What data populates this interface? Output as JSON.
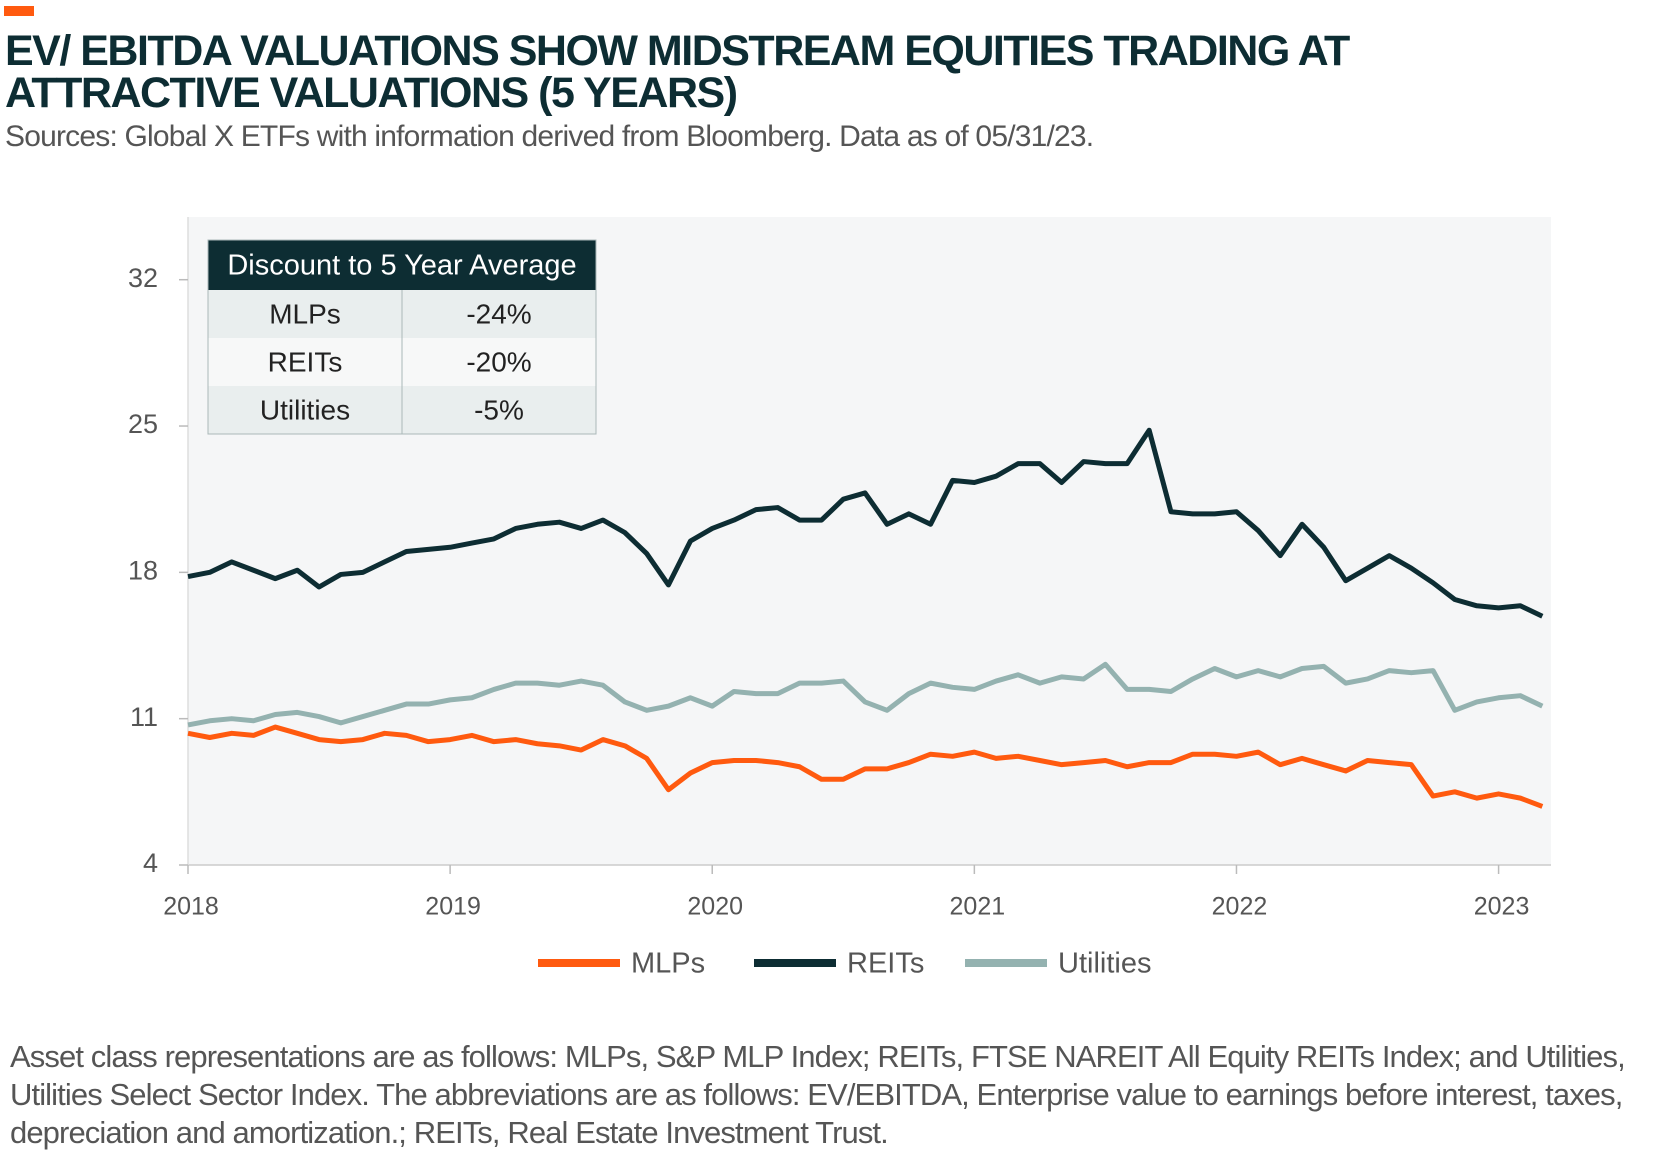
{
  "chart_data": {
    "type": "line",
    "title": "EV/ EBITDA VALUATIONS SHOW MIDSTREAM EQUITIES TRADING AT ATTRACTIVE VALUATIONS (5 YEARS)",
    "subtitle": "Sources: Global X ETFs with information derived from Bloomberg. Data as of 05/31/23.",
    "footnote": "Asset class representations are as follows: MLPs, S&P MLP Index; REITs, FTSE NAREIT All Equity REITs Index; and Utilities, Utilities Select Sector Index. The abbreviations are as follows: EV/EBITDA, Enterprise value to earnings before interest, taxes, depreciation and amortization.; REITs, Real Estate Investment Trust.",
    "x": [
      2018.0,
      2018.083,
      2018.167,
      2018.25,
      2018.333,
      2018.417,
      2018.5,
      2018.583,
      2018.667,
      2018.75,
      2018.833,
      2018.917,
      2019.0,
      2019.083,
      2019.167,
      2019.25,
      2019.333,
      2019.417,
      2019.5,
      2019.583,
      2019.667,
      2019.75,
      2019.833,
      2019.917,
      2020.0,
      2020.083,
      2020.167,
      2020.25,
      2020.333,
      2020.417,
      2020.5,
      2020.583,
      2020.667,
      2020.75,
      2020.833,
      2020.917,
      2021.0,
      2021.083,
      2021.167,
      2021.25,
      2021.333,
      2021.417,
      2021.5,
      2021.583,
      2021.667,
      2021.75,
      2021.833,
      2021.917,
      2022.0,
      2022.083,
      2022.167,
      2022.25,
      2022.333,
      2022.417,
      2022.5,
      2022.583,
      2022.667,
      2022.75,
      2022.833,
      2022.917,
      2023.0,
      2023.083,
      2023.167
    ],
    "series": [
      {
        "name": "MLPs",
        "color": "#ff5a0f",
        "values": [
          10.3,
          10.1,
          10.3,
          10.2,
          10.6,
          10.3,
          10.0,
          9.9,
          10.0,
          10.3,
          10.2,
          9.9,
          10.0,
          10.2,
          9.9,
          10.0,
          9.8,
          9.7,
          9.5,
          10.0,
          9.7,
          9.1,
          7.6,
          8.4,
          8.9,
          9.0,
          9.0,
          8.9,
          8.7,
          8.1,
          8.1,
          8.6,
          8.6,
          8.9,
          9.3,
          9.2,
          9.4,
          9.1,
          9.2,
          9.0,
          8.8,
          8.9,
          9.0,
          8.7,
          8.9,
          8.9,
          9.3,
          9.3,
          9.2,
          9.4,
          8.8,
          9.1,
          8.8,
          8.5,
          9.0,
          8.9,
          8.8,
          7.3,
          7.5,
          7.2,
          7.4,
          7.2,
          6.8
        ]
      },
      {
        "name": "REITs",
        "color": "#0d2d33",
        "values": [
          17.8,
          18.0,
          18.5,
          18.1,
          17.7,
          18.1,
          17.3,
          17.9,
          18.0,
          18.5,
          19.0,
          19.1,
          19.2,
          19.4,
          19.6,
          20.1,
          20.3,
          20.4,
          20.1,
          20.5,
          19.9,
          18.9,
          17.4,
          19.5,
          20.1,
          20.5,
          21.0,
          21.1,
          20.5,
          20.5,
          21.5,
          21.8,
          20.3,
          20.8,
          20.3,
          22.4,
          22.3,
          22.6,
          23.2,
          23.2,
          22.3,
          23.3,
          23.2,
          23.2,
          24.8,
          20.9,
          20.8,
          20.8,
          20.9,
          20.0,
          18.8,
          20.3,
          19.2,
          17.6,
          18.2,
          18.8,
          18.2,
          17.5,
          16.7,
          16.4,
          16.3,
          16.4,
          15.9
        ]
      },
      {
        "name": "Utilities",
        "color": "#94b2b0",
        "values": [
          10.7,
          10.9,
          11.0,
          10.9,
          11.2,
          11.3,
          11.1,
          10.8,
          11.1,
          11.4,
          11.7,
          11.7,
          11.9,
          12.0,
          12.4,
          12.7,
          12.7,
          12.6,
          12.8,
          12.6,
          11.8,
          11.4,
          11.6,
          12.0,
          11.6,
          12.3,
          12.2,
          12.2,
          12.7,
          12.7,
          12.8,
          11.8,
          11.4,
          12.2,
          12.7,
          12.5,
          12.4,
          12.8,
          13.1,
          12.7,
          13.0,
          12.9,
          13.6,
          12.4,
          12.4,
          12.3,
          12.9,
          13.4,
          13.0,
          13.3,
          13.0,
          13.4,
          13.5,
          12.7,
          12.9,
          13.3,
          13.2,
          13.3,
          11.4,
          11.8,
          12.0,
          12.1,
          11.6
        ]
      }
    ],
    "xlim": [
      2018,
      2023.2
    ],
    "xticks": [
      2018,
      2019,
      2020,
      2021,
      2022,
      2023
    ],
    "ylim": [
      4,
      35
    ],
    "yticks": [
      4,
      11,
      18,
      25,
      32
    ],
    "legend": "bottom",
    "table": {
      "header": "Discount to 5 Year Average",
      "rows": [
        [
          "MLPs",
          "-24%"
        ],
        [
          "REITs",
          "-20%"
        ],
        [
          "Utilities",
          "-5%"
        ]
      ]
    }
  }
}
